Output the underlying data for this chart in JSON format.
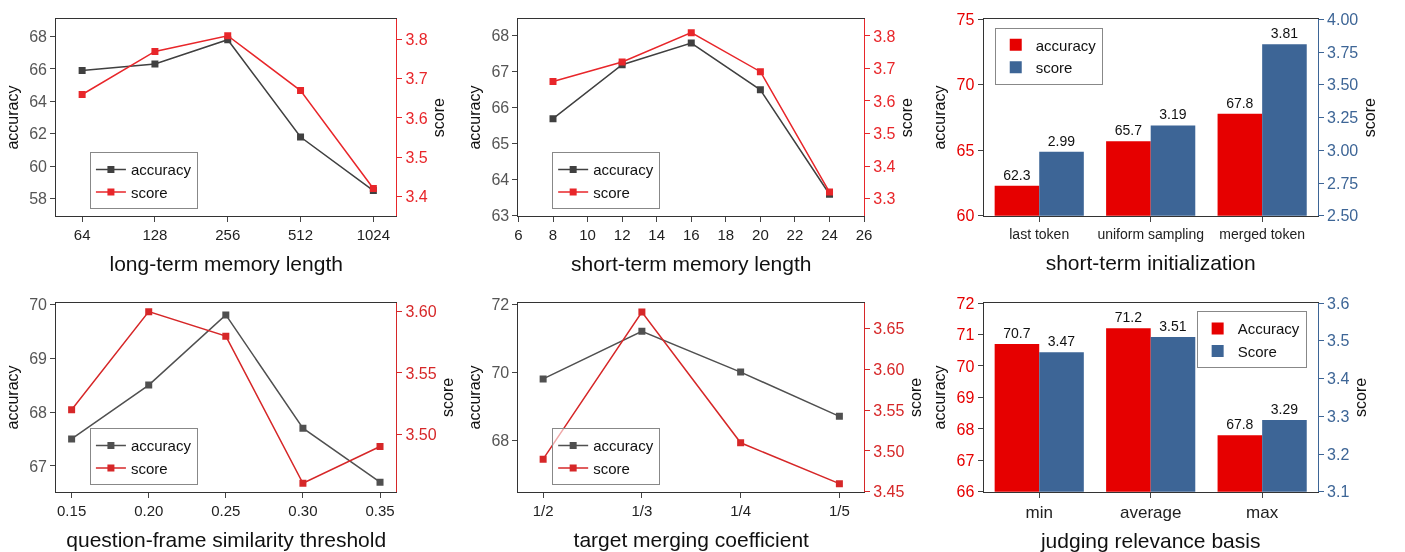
{
  "chart_data": [
    {
      "type": "line",
      "xlabel": "long-term memory length",
      "ylabel": "accuracy",
      "y2label": "score",
      "log": "x",
      "x": [
        64,
        128,
        256,
        512,
        1024
      ],
      "xlim": [
        50,
        1273
      ],
      "xticks": [
        64,
        128,
        256,
        512,
        1024
      ],
      "ylim": [
        56.94,
        69.06
      ],
      "yticks": [
        58,
        60,
        62,
        64,
        66,
        68
      ],
      "y2lim": [
        3.35,
        3.852
      ],
      "y2ticks": [
        3.4,
        3.5,
        3.6,
        3.7,
        3.8
      ],
      "legend": "bottom left",
      "grid": false,
      "marker": "square",
      "line_style": "solid",
      "series": [
        {
          "name": "accuracy",
          "color": "#404040",
          "values": [
            65.9,
            66.3,
            67.8,
            61.8,
            58.5
          ]
        },
        {
          "name": "score",
          "color": "#e8262a",
          "axis": "y2",
          "values": [
            3.66,
            3.77,
            3.81,
            3.67,
            3.42
          ]
        }
      ]
    },
    {
      "type": "line",
      "xlabel": "short-term memory length",
      "ylabel": "accuracy",
      "y2label": "score",
      "x": [
        8,
        12,
        16,
        20,
        24
      ],
      "xlim": [
        6,
        26
      ],
      "xticks": [
        6,
        8,
        10,
        12,
        14,
        16,
        18,
        20,
        22,
        24,
        26
      ],
      "ylim": [
        63,
        68.46
      ],
      "yticks": [
        63,
        64,
        65,
        66,
        67,
        68
      ],
      "y2lim": [
        3.247,
        3.851
      ],
      "y2ticks": [
        3.3,
        3.4,
        3.5,
        3.6,
        3.7,
        3.8
      ],
      "legend": "bottom left",
      "grid": false,
      "marker": "square",
      "line_style": "solid",
      "series": [
        {
          "name": "accuracy",
          "color": "#404040",
          "values": [
            65.7,
            67.2,
            67.8,
            66.5,
            63.6
          ]
        },
        {
          "name": "score",
          "color": "#e8262a",
          "axis": "y2",
          "values": [
            3.66,
            3.72,
            3.81,
            3.69,
            3.32
          ]
        }
      ]
    },
    {
      "type": "bar",
      "xlabel": "short-term initialization",
      "ylabel": "accuracy",
      "y2label": "score",
      "categories": [
        "last token",
        "uniform sampling",
        "merged token"
      ],
      "ylim": [
        60,
        75
      ],
      "yticks": [
        60,
        65,
        70,
        75
      ],
      "y2lim": [
        2.5,
        4.0
      ],
      "y2ticks": [
        {
          "value": 2.5,
          "label": "2.50"
        },
        {
          "value": 2.75,
          "label": "2.75"
        },
        {
          "value": 3.0,
          "label": "3.00"
        },
        {
          "value": 3.25,
          "label": "3.25"
        },
        {
          "value": 3.5,
          "label": "3.50"
        },
        {
          "value": 3.75,
          "label": "3.75"
        },
        {
          "value": 4.0,
          "label": "4.00"
        }
      ],
      "legend": "top left",
      "grid": false,
      "data_labels": true,
      "series": [
        {
          "name": "accuracy",
          "color": "#e60000",
          "values": [
            62.3,
            65.7,
            67.8
          ]
        },
        {
          "name": "score",
          "color": "#3d6596",
          "axis": "y2",
          "values": [
            2.99,
            3.19,
            3.81
          ]
        }
      ]
    },
    {
      "type": "line",
      "xlabel": "question-frame similarity threshold",
      "ylabel": "accuracy",
      "y2label": "score",
      "x": [
        0.15,
        0.2,
        0.25,
        0.3,
        0.35
      ],
      "xlim": [
        0.14,
        0.3605
      ],
      "xticks": [
        0.15,
        {
          "value": 0.2,
          "label": "0.20"
        },
        0.25,
        {
          "value": 0.3,
          "label": "0.30"
        },
        0.35
      ],
      "ylim": [
        66.52,
        70.02
      ],
      "yticks": [
        67,
        68,
        69,
        70
      ],
      "y2lim": [
        3.453,
        3.607
      ],
      "y2ticks": [
        {
          "value": 3.5,
          "label": "3.50"
        },
        3.55,
        {
          "value": 3.6,
          "label": "3.60"
        }
      ],
      "legend": "bottom left",
      "grid": false,
      "marker": "square",
      "line_style": "solid",
      "series": [
        {
          "name": "accuracy",
          "color": "#505050",
          "values": [
            67.5,
            68.5,
            69.8,
            67.7,
            66.7
          ]
        },
        {
          "name": "score",
          "color": "#d62728",
          "axis": "y2",
          "values": [
            3.52,
            3.6,
            3.58,
            3.46,
            3.49
          ]
        }
      ]
    },
    {
      "type": "line",
      "xlabel": "target merging coefficient",
      "ylabel": "accuracy",
      "y2label": "score",
      "categories": [
        "1/2",
        "1/3",
        "1/4",
        "1/5"
      ],
      "ylim": [
        66.48,
        72.03
      ],
      "yticks": [
        68,
        70,
        72
      ],
      "y2lim": [
        3.45,
        3.681
      ],
      "y2ticks": [
        3.45,
        {
          "value": 3.5,
          "label": "3.50"
        },
        3.55,
        {
          "value": 3.6,
          "label": "3.60"
        },
        3.65
      ],
      "legend": "bottom left",
      "grid": false,
      "marker": "square",
      "line_style": "solid",
      "series": [
        {
          "name": "accuracy",
          "color": "#505050",
          "values": [
            69.8,
            71.2,
            70.0,
            68.7
          ]
        },
        {
          "name": "score",
          "color": "#d62728",
          "axis": "y2",
          "values": [
            3.49,
            3.67,
            3.51,
            3.46
          ]
        }
      ]
    },
    {
      "type": "bar",
      "xlabel": "judging relevance basis",
      "ylabel": "accuracy",
      "y2label": "score",
      "categories": [
        "min",
        "average",
        "max"
      ],
      "ylim": [
        66,
        72
      ],
      "yticks": [
        66,
        67,
        68,
        69,
        70,
        71,
        72
      ],
      "y2lim": [
        3.1,
        3.6
      ],
      "y2ticks": [
        3.1,
        3.2,
        3.3,
        3.4,
        3.5,
        3.6
      ],
      "legend": "top right",
      "grid": false,
      "data_labels": true,
      "series": [
        {
          "name": "Accuracy",
          "color": "#e60000",
          "values": [
            70.7,
            71.2,
            67.8
          ]
        },
        {
          "name": "Score",
          "color": "#3d6596",
          "axis": "y2",
          "values": [
            3.47,
            3.51,
            3.29
          ]
        }
      ]
    }
  ]
}
